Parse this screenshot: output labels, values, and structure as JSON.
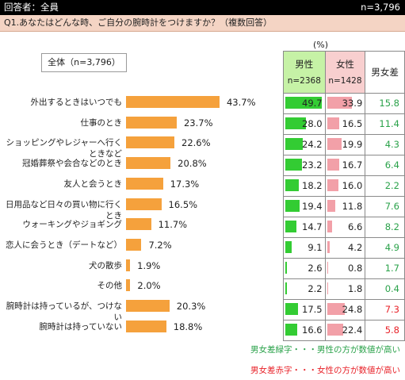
{
  "header": {
    "respondents": "回答者：全員",
    "n": "n=3,796"
  },
  "question": "Q1.あなたはどんな時、ご自分の腕時計をつけますか？（複数回答）",
  "legend_label": "全体（n=3,796）",
  "unit": "(%)",
  "table_headers": {
    "male": "男性",
    "male_n": "n=2368",
    "female": "女性",
    "female_n": "n=1428",
    "diff": "男女差"
  },
  "colors": {
    "overall_bar": "#f5a13c",
    "male_bar": "#33cc33",
    "female_bar": "#f2a0a8",
    "diff_green": "#2aa24a",
    "diff_red": "#e8232a",
    "header_bar": "#000000",
    "question_bar": "#f4d4c4"
  },
  "chart_data": {
    "type": "bar",
    "orientation": "horizontal",
    "xlim": [
      0,
      50
    ],
    "categories": [
      "外出するときはいつでも",
      "仕事のとき",
      "ショッピングやレジャーへ行くときなど",
      "冠婚葬祭や会合などのとき",
      "友人と会うとき",
      "日用品など日々の買い物に行くとき",
      "ウォーキングやジョギング",
      "恋人に会うとき（デートなど）",
      "犬の散歩",
      "その他",
      "腕時計は持っているが、つけない",
      "腕時計は持っていない"
    ],
    "overall": [
      "43.7%",
      "23.7%",
      "22.6%",
      "20.8%",
      "17.3%",
      "16.5%",
      "11.7%",
      "7.2%",
      "1.9%",
      "2.0%",
      "20.3%",
      "18.8%"
    ],
    "overall_values": [
      43.7,
      23.7,
      22.6,
      20.8,
      17.3,
      16.5,
      11.7,
      7.2,
      1.9,
      2.0,
      20.3,
      18.8
    ],
    "male": [
      "49.7",
      "28.0",
      "24.2",
      "23.2",
      "18.2",
      "19.4",
      "14.7",
      "9.1",
      "2.6",
      "2.2",
      "17.5",
      "16.6"
    ],
    "male_values": [
      49.7,
      28.0,
      24.2,
      23.2,
      18.2,
      19.4,
      14.7,
      9.1,
      2.6,
      2.2,
      17.5,
      16.6
    ],
    "female": [
      "33.9",
      "16.5",
      "19.9",
      "16.7",
      "16.0",
      "11.8",
      "6.6",
      "4.2",
      "0.8",
      "1.8",
      "24.8",
      "22.4"
    ],
    "female_values": [
      33.9,
      16.5,
      19.9,
      16.7,
      16.0,
      11.8,
      6.6,
      4.2,
      0.8,
      1.8,
      24.8,
      22.4
    ],
    "diff": [
      "15.8",
      "11.4",
      "4.3",
      "6.4",
      "2.2",
      "7.6",
      "8.2",
      "4.9",
      "1.7",
      "0.4",
      "7.3",
      "5.8"
    ],
    "diff_color": [
      "green",
      "green",
      "green",
      "green",
      "green",
      "green",
      "green",
      "green",
      "green",
      "green",
      "red",
      "red"
    ]
  },
  "notes": {
    "green": "男女差緑字・・・男性の方が数値が高い",
    "red": "男女差赤字・・・女性の方が数値が高い"
  }
}
